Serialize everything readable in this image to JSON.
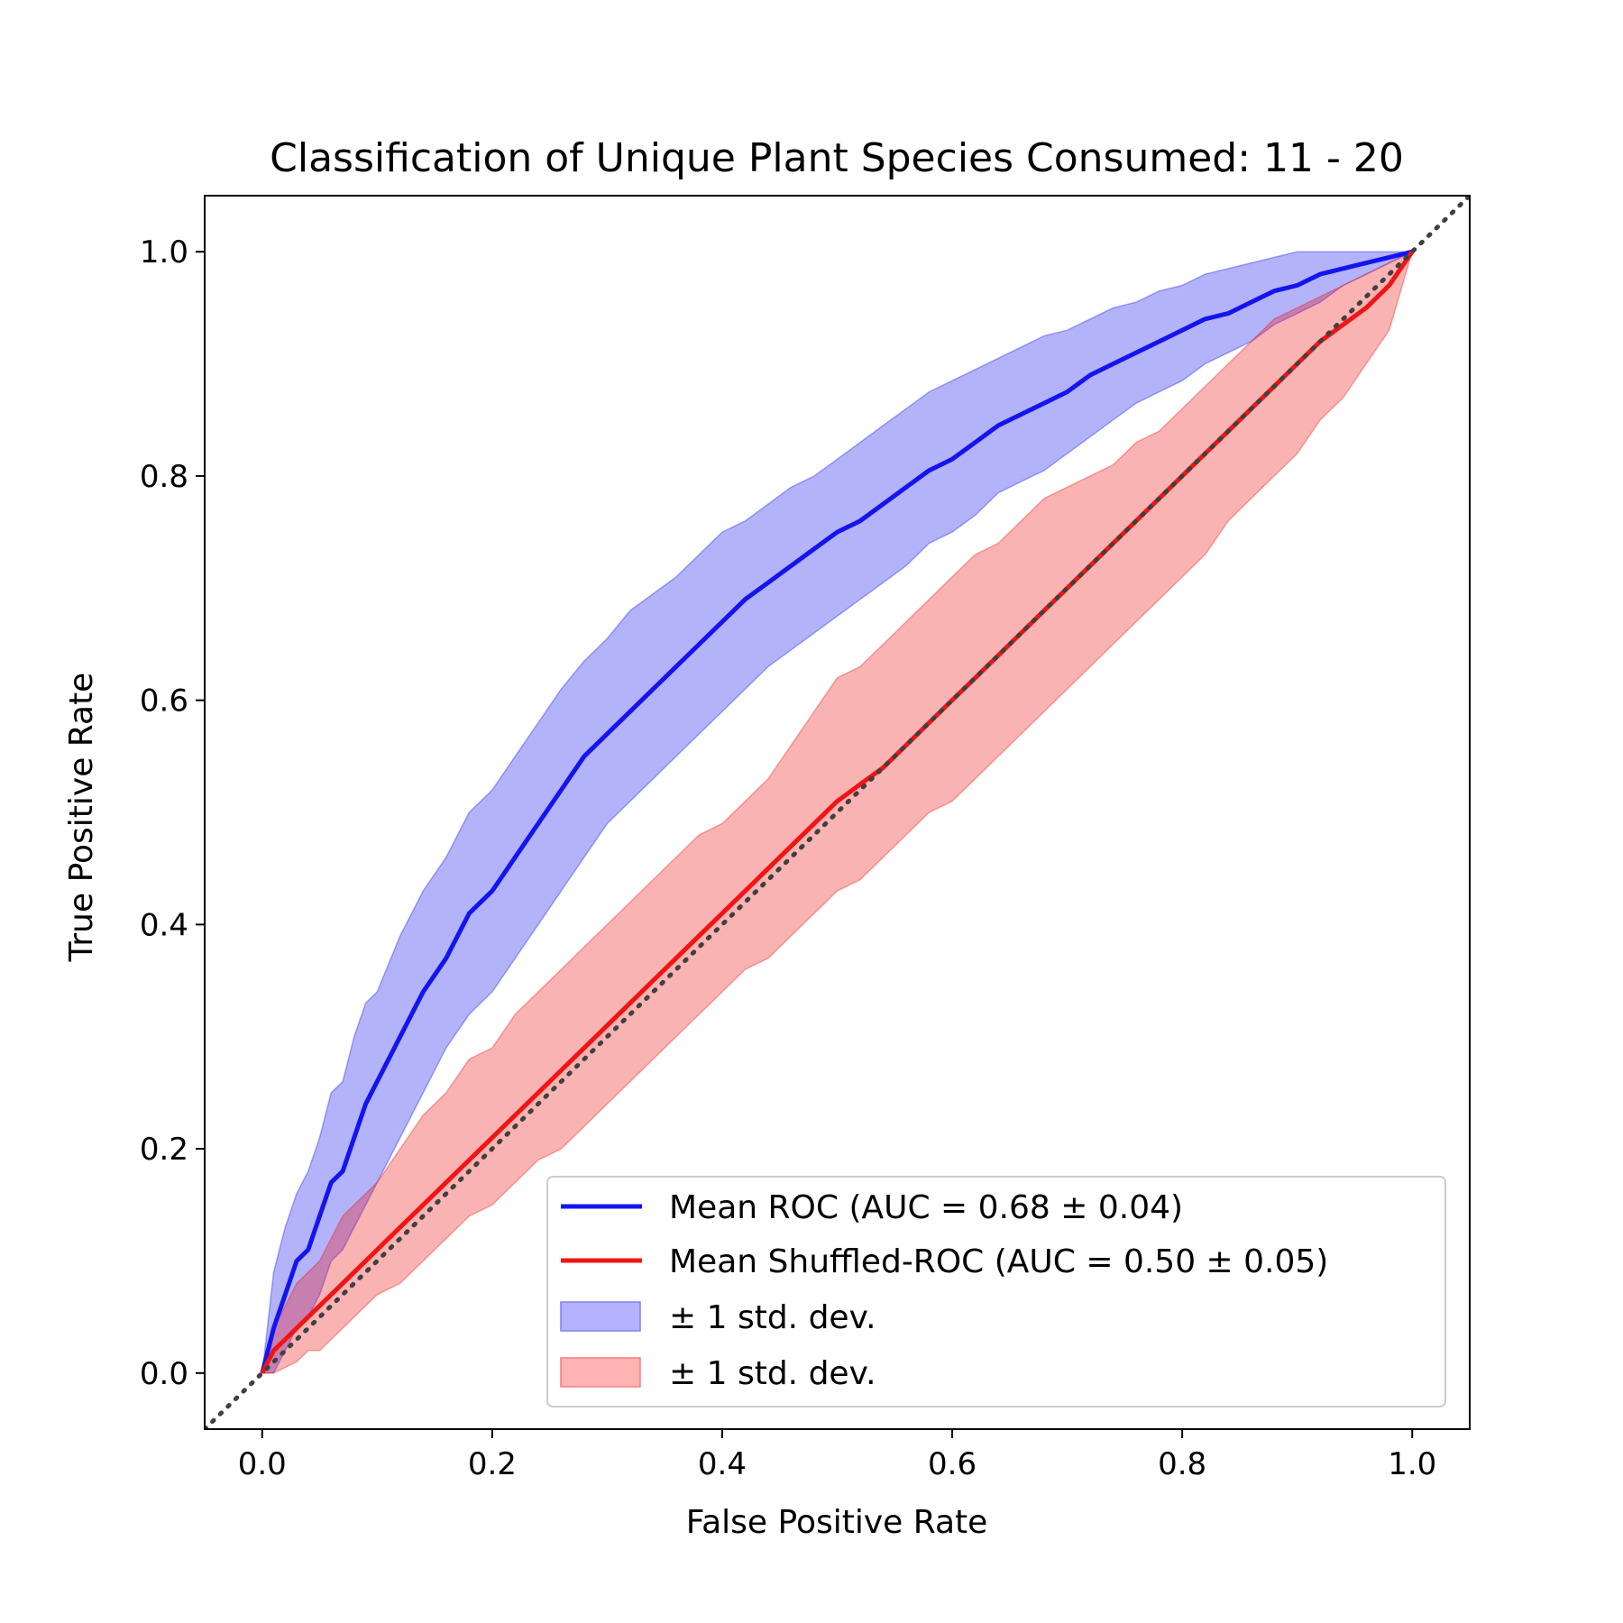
{
  "chart_data": {
    "type": "line",
    "title": "Classification of Unique Plant Species Consumed: 11 - 20",
    "xlabel": "False Positive Rate",
    "ylabel": "True Positive Rate",
    "xlim": [
      -0.05,
      1.05
    ],
    "ylim": [
      -0.05,
      1.05
    ],
    "xticks": [
      "0.0",
      "0.2",
      "0.4",
      "0.6",
      "0.8",
      "1.0"
    ],
    "yticks": [
      "0.0",
      "0.2",
      "0.4",
      "0.6",
      "0.8",
      "1.0"
    ],
    "grid": false,
    "legend_position": "lower-right",
    "x": [
      0.0,
      0.01,
      0.02,
      0.03,
      0.04,
      0.05,
      0.06,
      0.07,
      0.08,
      0.09,
      0.1,
      0.12,
      0.14,
      0.16,
      0.18,
      0.2,
      0.22,
      0.24,
      0.26,
      0.28,
      0.3,
      0.32,
      0.34,
      0.36,
      0.38,
      0.4,
      0.42,
      0.44,
      0.46,
      0.48,
      0.5,
      0.52,
      0.54,
      0.56,
      0.58,
      0.6,
      0.62,
      0.64,
      0.66,
      0.68,
      0.7,
      0.72,
      0.74,
      0.76,
      0.78,
      0.8,
      0.82,
      0.84,
      0.86,
      0.88,
      0.9,
      0.92,
      0.94,
      0.96,
      0.98,
      1.0
    ],
    "series": [
      {
        "name": "Mean ROC (AUC = 0.68 ± 0.04)",
        "color": "#1414f0",
        "values": [
          0.0,
          0.04,
          0.07,
          0.1,
          0.11,
          0.14,
          0.17,
          0.18,
          0.21,
          0.24,
          0.26,
          0.3,
          0.34,
          0.37,
          0.41,
          0.43,
          0.46,
          0.49,
          0.52,
          0.55,
          0.57,
          0.59,
          0.61,
          0.63,
          0.65,
          0.67,
          0.69,
          0.705,
          0.72,
          0.735,
          0.75,
          0.76,
          0.775,
          0.79,
          0.805,
          0.815,
          0.83,
          0.845,
          0.855,
          0.865,
          0.875,
          0.89,
          0.9,
          0.91,
          0.92,
          0.93,
          0.94,
          0.945,
          0.955,
          0.965,
          0.97,
          0.98,
          0.985,
          0.99,
          0.995,
          1.0
        ],
        "std_upper": [
          0.0,
          0.09,
          0.13,
          0.16,
          0.18,
          0.21,
          0.25,
          0.26,
          0.3,
          0.33,
          0.34,
          0.39,
          0.43,
          0.46,
          0.5,
          0.52,
          0.55,
          0.58,
          0.61,
          0.635,
          0.655,
          0.68,
          0.695,
          0.71,
          0.73,
          0.75,
          0.76,
          0.775,
          0.79,
          0.8,
          0.815,
          0.83,
          0.845,
          0.86,
          0.875,
          0.885,
          0.895,
          0.905,
          0.915,
          0.925,
          0.93,
          0.94,
          0.95,
          0.955,
          0.965,
          0.97,
          0.98,
          0.985,
          0.99,
          0.995,
          1.0,
          1.0,
          1.0,
          1.0,
          1.0,
          1.0
        ],
        "std_lower": [
          0.0,
          0.0,
          0.02,
          0.04,
          0.05,
          0.07,
          0.1,
          0.11,
          0.13,
          0.15,
          0.17,
          0.21,
          0.25,
          0.29,
          0.32,
          0.34,
          0.37,
          0.4,
          0.43,
          0.46,
          0.49,
          0.51,
          0.53,
          0.55,
          0.57,
          0.59,
          0.61,
          0.63,
          0.645,
          0.66,
          0.675,
          0.69,
          0.705,
          0.72,
          0.74,
          0.75,
          0.765,
          0.785,
          0.795,
          0.805,
          0.82,
          0.835,
          0.85,
          0.865,
          0.875,
          0.885,
          0.9,
          0.91,
          0.92,
          0.935,
          0.945,
          0.955,
          0.97,
          0.98,
          0.99,
          1.0
        ]
      },
      {
        "name": "Mean Shuffled-ROC (AUC = 0.50 ± 0.05)",
        "color": "#f01414",
        "values": [
          0.0,
          0.02,
          0.03,
          0.04,
          0.05,
          0.06,
          0.07,
          0.08,
          0.09,
          0.1,
          0.11,
          0.13,
          0.15,
          0.17,
          0.19,
          0.21,
          0.23,
          0.25,
          0.27,
          0.29,
          0.31,
          0.33,
          0.35,
          0.37,
          0.39,
          0.41,
          0.43,
          0.45,
          0.47,
          0.49,
          0.51,
          0.525,
          0.54,
          0.56,
          0.58,
          0.6,
          0.62,
          0.64,
          0.66,
          0.68,
          0.7,
          0.72,
          0.74,
          0.76,
          0.78,
          0.8,
          0.82,
          0.84,
          0.86,
          0.88,
          0.9,
          0.92,
          0.935,
          0.95,
          0.97,
          1.0
        ],
        "std_upper": [
          0.0,
          0.04,
          0.06,
          0.08,
          0.09,
          0.1,
          0.12,
          0.14,
          0.15,
          0.16,
          0.17,
          0.2,
          0.23,
          0.25,
          0.28,
          0.29,
          0.32,
          0.34,
          0.36,
          0.38,
          0.4,
          0.42,
          0.44,
          0.46,
          0.48,
          0.49,
          0.51,
          0.53,
          0.56,
          0.59,
          0.62,
          0.63,
          0.65,
          0.67,
          0.69,
          0.71,
          0.73,
          0.74,
          0.76,
          0.78,
          0.79,
          0.8,
          0.81,
          0.83,
          0.84,
          0.86,
          0.88,
          0.9,
          0.92,
          0.94,
          0.95,
          0.96,
          0.97,
          0.98,
          0.99,
          1.0
        ],
        "std_lower": [
          0.0,
          0.0,
          0.005,
          0.01,
          0.02,
          0.02,
          0.03,
          0.04,
          0.05,
          0.06,
          0.07,
          0.08,
          0.1,
          0.12,
          0.14,
          0.15,
          0.17,
          0.19,
          0.2,
          0.22,
          0.24,
          0.26,
          0.28,
          0.3,
          0.32,
          0.34,
          0.36,
          0.37,
          0.39,
          0.41,
          0.43,
          0.44,
          0.46,
          0.48,
          0.5,
          0.51,
          0.53,
          0.55,
          0.57,
          0.59,
          0.61,
          0.63,
          0.65,
          0.67,
          0.69,
          0.71,
          0.73,
          0.76,
          0.78,
          0.8,
          0.82,
          0.85,
          0.87,
          0.9,
          0.93,
          1.0
        ]
      }
    ],
    "diagonal": {
      "x": [
        -0.05,
        1.05
      ],
      "y": [
        -0.05,
        1.05
      ],
      "color": "#404040",
      "style": "dotted"
    },
    "legend": [
      {
        "kind": "line",
        "color": "#1414f0",
        "label": "Mean ROC (AUC = 0.68 ± 0.04)"
      },
      {
        "kind": "line",
        "color": "#f01414",
        "label": "Mean Shuffled-ROC (AUC = 0.50 ± 0.05)"
      },
      {
        "kind": "patch",
        "color": "#b3b3ff",
        "label": "± 1 std. dev."
      },
      {
        "kind": "patch",
        "color": "#ffb3b3",
        "label": "± 1 std. dev."
      }
    ]
  }
}
